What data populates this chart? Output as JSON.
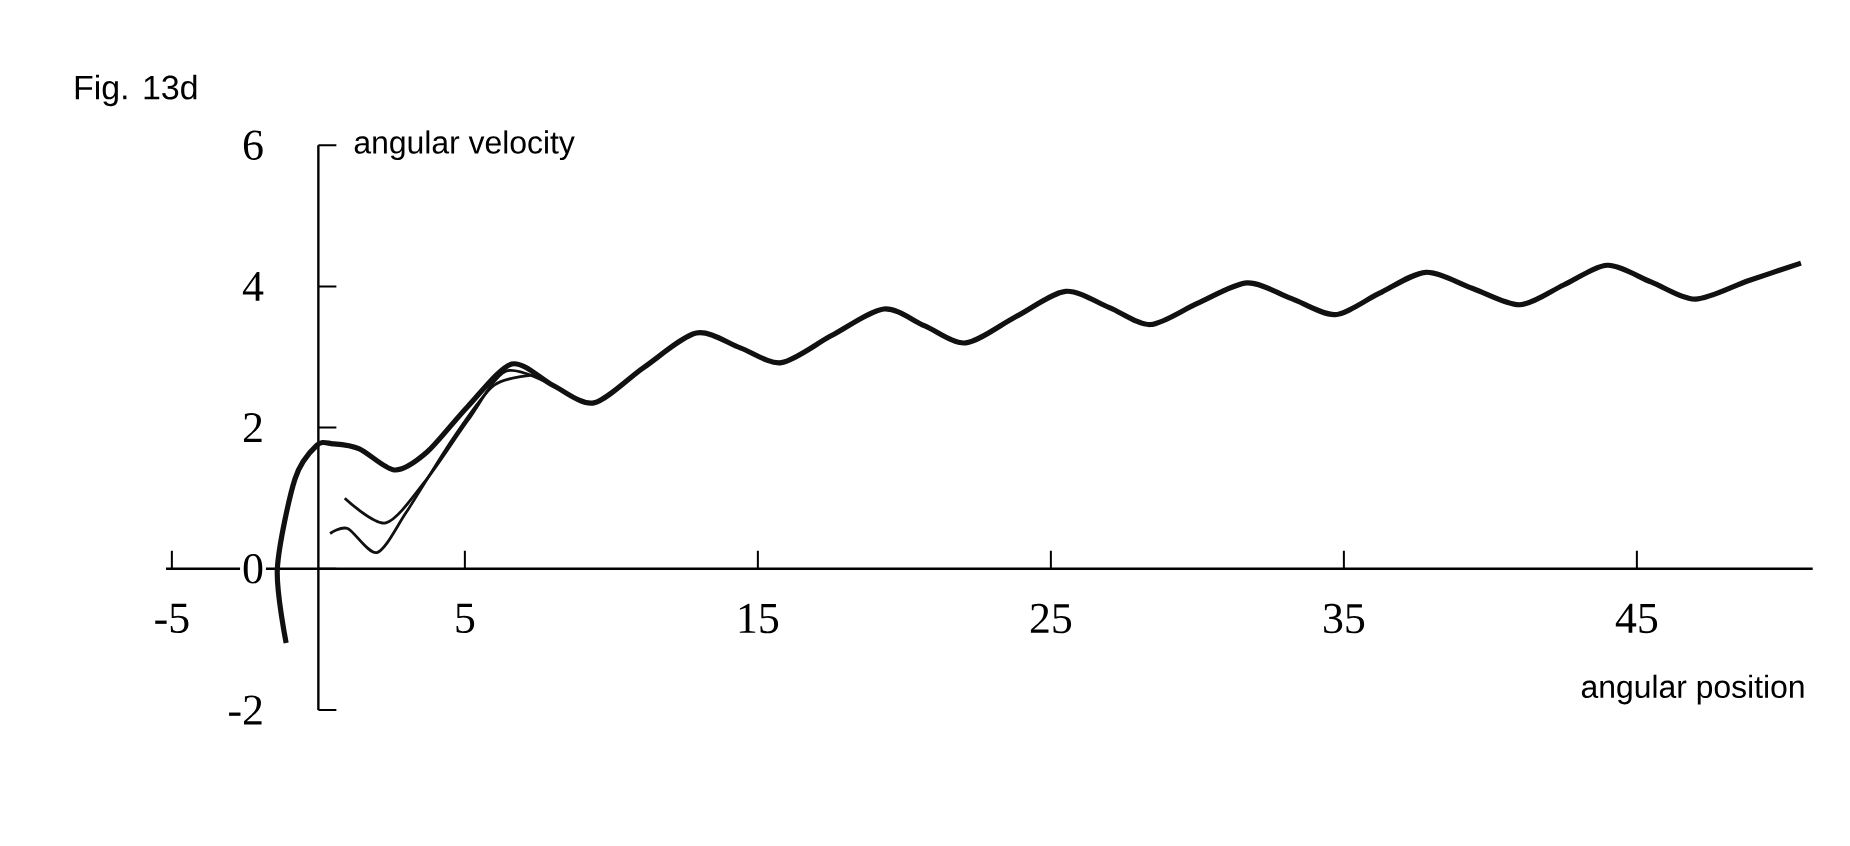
{
  "chart_data": {
    "type": "line",
    "title": "Fig. 13d",
    "xlabel": "angular position",
    "ylabel": "angular velocity",
    "xlim": [
      -5.2,
      51
    ],
    "ylim": [
      -2,
      6
    ],
    "xticks": [
      -5,
      5,
      15,
      25,
      35,
      45
    ],
    "yticks": [
      -2,
      0,
      2,
      4,
      6
    ],
    "grid": false,
    "marker": "none",
    "line_style": "solid",
    "series": [
      {
        "color": "#111111",
        "x": [
          -1.1,
          -1.4,
          -0.8,
          -0.05,
          0.5,
          1.4,
          2.6,
          3.7,
          5.1,
          6.6,
          8.0,
          9.4,
          11.1,
          12.9,
          14.4,
          15.8,
          17.5,
          19.3,
          20.7,
          22.1,
          23.8,
          25.5,
          27.0,
          28.4,
          30.0,
          31.7,
          33.2,
          34.7,
          36.2,
          37.8,
          39.4,
          41.0,
          42.5,
          44.0,
          45.5,
          47.0,
          48.8,
          50.6
        ],
        "values": [
          -1.05,
          0.0,
          1.27,
          1.75,
          1.77,
          1.7,
          1.4,
          1.65,
          2.3,
          2.9,
          2.6,
          2.35,
          2.85,
          3.34,
          3.13,
          2.92,
          3.3,
          3.68,
          3.44,
          3.2,
          3.57,
          3.93,
          3.7,
          3.46,
          3.76,
          4.05,
          3.83,
          3.6,
          3.9,
          4.2,
          3.97,
          3.74,
          4.02,
          4.3,
          4.06,
          3.82,
          4.08,
          4.33
        ]
      },
      {
        "color": "#111111",
        "x": [
          0.9,
          2.3,
          3.7,
          5.1,
          6.4,
          8.0
        ],
        "values": [
          1.0,
          0.65,
          1.27,
          2.1,
          2.8,
          2.6
        ]
      },
      {
        "color": "#111111",
        "x": [
          0.4,
          1.0,
          2.0,
          3.0,
          4.6,
          6.0,
          7.5
        ],
        "values": [
          0.5,
          0.57,
          0.23,
          0.8,
          1.85,
          2.6,
          2.75
        ]
      }
    ]
  }
}
